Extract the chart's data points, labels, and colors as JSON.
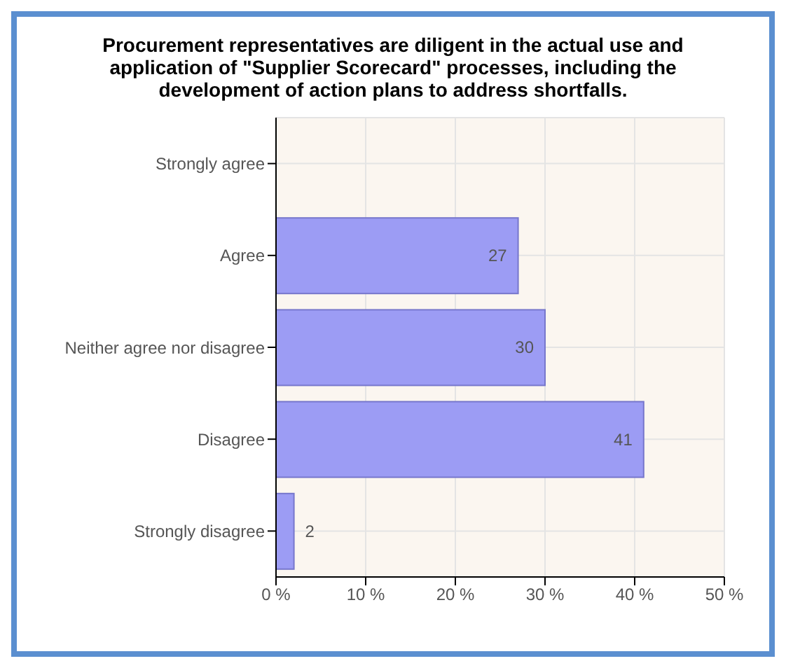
{
  "chart_data": {
    "type": "bar",
    "orientation": "horizontal",
    "title": "Procurement representatives are diligent in the actual use and application of \"Supplier Scorecard\" processes, including the development of action plans to address shortfalls.",
    "categories": [
      "Strongly agree",
      "Agree",
      "Neither agree nor disagree",
      "Disagree",
      "Strongly disagree"
    ],
    "values": [
      0,
      27,
      30,
      41,
      2
    ],
    "value_labels": [
      null,
      "27",
      "30",
      "41",
      "2"
    ],
    "color": "#9c9cf4",
    "xlim": [
      0,
      50
    ],
    "xticks": [
      {
        "value": 0,
        "label": "0 %"
      },
      {
        "value": 10,
        "label": "10 %"
      },
      {
        "value": 20,
        "label": "20 %"
      },
      {
        "value": 30,
        "label": "30 %"
      },
      {
        "value": 40,
        "label": "40 %"
      },
      {
        "value": 50,
        "label": "50 %"
      }
    ],
    "grid": true
  }
}
